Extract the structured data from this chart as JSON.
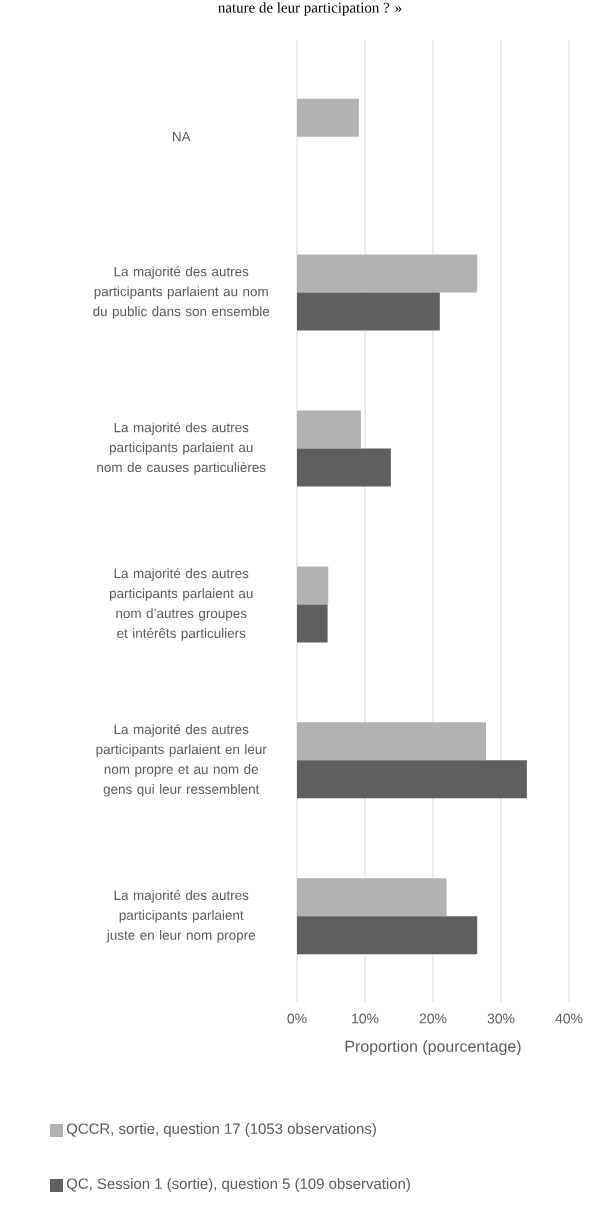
{
  "chart_data": {
    "type": "bar",
    "orientation": "horizontal",
    "title": "nature de leur participation ? »",
    "categories": [
      "NA",
      "La majorité des autres participants parlaient au nom du public dans son ensemble",
      "La majorité des autres participants parlaient au nom de causes particulières",
      "La majorité des autres participants parlaient au nom d’autres groupes et intérêts particuliers",
      "La majorité des autres participants parlaient en leur nom propre et au nom de gens qui leur ressemblent",
      "La majorité des autres participants parlaient juste en leur nom propre"
    ],
    "series": [
      {
        "name": "QCCR, sortie, question 17 (1053 observations)",
        "color": "#b2b2b2",
        "values": [
          9.1,
          26.5,
          9.4,
          4.6,
          27.8,
          22.0
        ]
      },
      {
        "name": "QC, Session 1 (sortie), question 5 (109 observation)",
        "color": "#5f5f5f",
        "values": [
          null,
          21.0,
          13.8,
          4.5,
          33.8,
          26.5
        ]
      }
    ],
    "xlabel": "Proportion (pourcentage)",
    "xlim": [
      0,
      40
    ],
    "xticks": [
      {
        "value": 0,
        "label": "0%"
      },
      {
        "value": 10,
        "label": "10%"
      },
      {
        "value": 20,
        "label": "20%"
      },
      {
        "value": 30,
        "label": "30%"
      },
      {
        "value": 40,
        "label": "40%"
      }
    ],
    "grid": "x",
    "legend": "bottom"
  }
}
